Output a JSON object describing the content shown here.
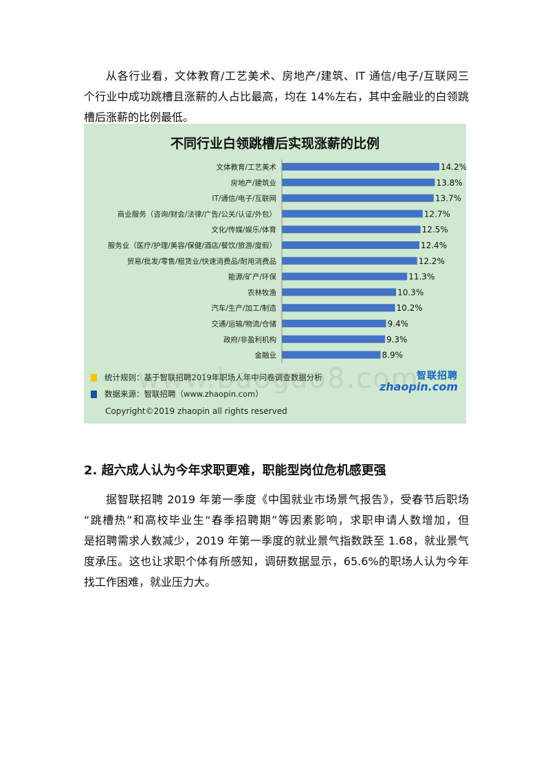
{
  "intro_paragraph": {
    "lines": [
      "从各行业看，文体教育/工艺美术、房地产/建筑、IT 通信/电子/互联网三",
      "个行业中成功跳槽且涨薪的人占比最高，均在 14%左右，其中金融业的白领跳",
      "槽后涨薪的比例最低。"
    ]
  },
  "chart_data": {
    "type": "bar",
    "orientation": "horizontal",
    "title": "不同行业白领跳槽后实现涨薪的比例",
    "categories": [
      "文体教育/工艺美术",
      "房地产/建筑业",
      "IT/通信/电子/互联网",
      "商业服务（咨询/财会/法律/广告/公关/认证/外包）",
      "文化/传媒/娱乐/体育",
      "服务业（医疗/护理/美容/保健/酒店/餐饮/旅游/度假）",
      "贸易/批发/零售/租赁业/快速消费品/耐用消费品",
      "能源/矿产/环保",
      "农林牧渔",
      "汽车/生产/加工/制造",
      "交通/运输/物流/仓储",
      "政府/非盈利机构",
      "金融业"
    ],
    "values": [
      14.2,
      13.8,
      13.7,
      12.7,
      12.5,
      12.4,
      12.2,
      11.3,
      10.3,
      10.2,
      9.4,
      9.3,
      8.9
    ],
    "value_labels": [
      "14.2%",
      "13.8%",
      "13.7%",
      "12.7%",
      "12.5%",
      "12.4%",
      "12.2%",
      "11.3%",
      "10.3%",
      "10.2%",
      "9.4%",
      "9.3%",
      "8.9%"
    ],
    "xlim": [
      0,
      14.2
    ],
    "bar_color": "#4472c4",
    "grid": false,
    "legend": [
      {
        "label": "统计规则：基于智联招聘2019年职场人年中问卷调查数据分析",
        "color": "#f6c400"
      },
      {
        "label": "数据来源：智联招聘（www.zhaopin.com）",
        "color": "#1f4e9c"
      }
    ],
    "background_color": "#cfe8d0"
  },
  "logo": {
    "cn": "智联招聘",
    "en": "zhaopin.com"
  },
  "copyright": "Copyright©2019 zhaopin all rights reserved",
  "watermark": "www.baogao8.com",
  "section": {
    "heading": "2.  超六成人认为今年求职更难，职能型岗位危机感更强",
    "lines": [
      "据智联招聘 2019 年第一季度《中国就业市场景气报告》，受春节后职场",
      "“跳槽热”和高校毕业生“春季招聘期”等因素影响，求职申请人数增加，但",
      "是招聘需求人数减少，2019 年第一季度的就业景气指数跌至 1.68，就业景气",
      "度承压。这也让求职个体有所感知，调研数据显示，65.6%的职场人认为今年",
      "找工作困难，就业压力大。"
    ]
  }
}
